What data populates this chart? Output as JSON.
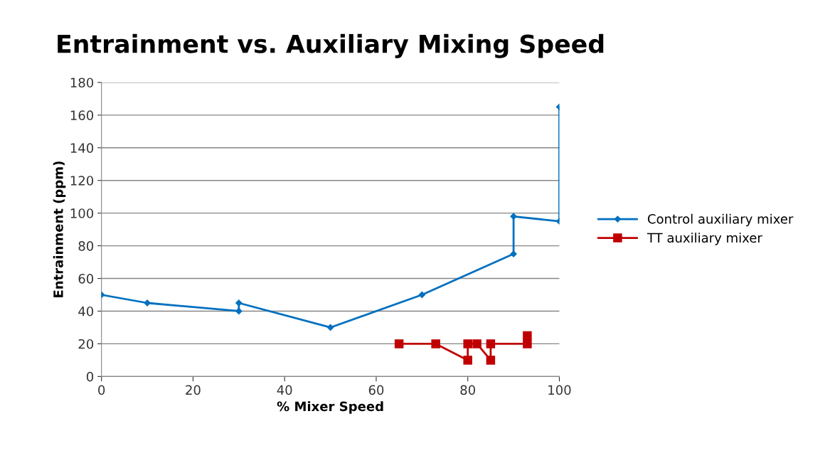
{
  "chart_data": {
    "type": "line",
    "title": "Entrainment vs. Auxiliary Mixing Speed",
    "xlabel": "% Mixer Speed",
    "ylabel": "Entrainment (ppm)",
    "xlim": [
      0,
      100
    ],
    "xticks": [
      0,
      20,
      40,
      60,
      80,
      100
    ],
    "ylim": [
      0,
      180
    ],
    "yticks": [
      0,
      20,
      40,
      60,
      80,
      100,
      120,
      140,
      160,
      180
    ],
    "grid": "y",
    "legend": "right",
    "series": [
      {
        "name": "Control auxiliary mixer",
        "color": "#0070c0",
        "marker": "diamond",
        "x": [
          0,
          10,
          30,
          30,
          50,
          70,
          90,
          90,
          100,
          100
        ],
        "values": [
          50,
          45,
          40,
          45,
          30,
          50,
          75,
          98,
          95,
          165
        ]
      },
      {
        "name": "TT auxiliary mixer",
        "color": "#c00000",
        "marker": "square",
        "x": [
          65,
          73,
          80,
          80,
          82,
          85,
          85,
          93,
          93
        ],
        "values": [
          20,
          20,
          10,
          20,
          20,
          10,
          20,
          20,
          25
        ]
      }
    ]
  }
}
